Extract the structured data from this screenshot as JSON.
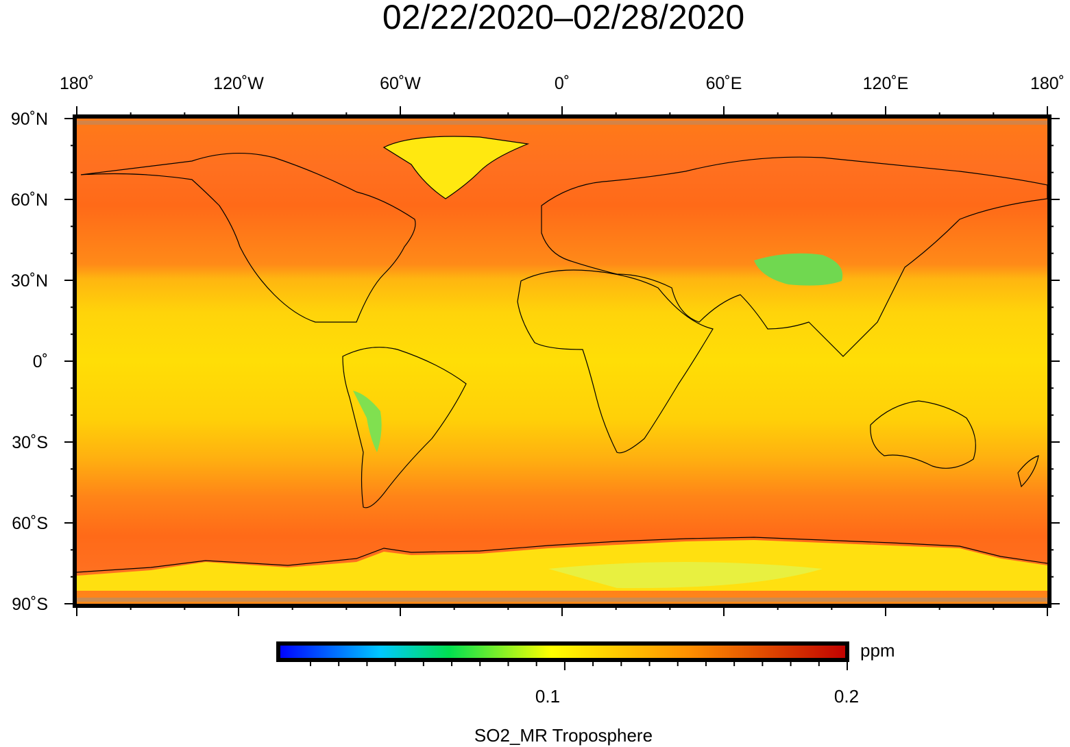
{
  "title": "02/22/2020–02/28/2020",
  "map": {
    "projection": "equirectangular",
    "lon_range": [
      -180,
      180
    ],
    "lat_range": [
      -90,
      90
    ],
    "top_labels": [
      "180˚",
      "120˚W",
      "60˚W",
      "0˚",
      "60˚E",
      "120˚E",
      "180˚"
    ],
    "left_labels": [
      "90˚N",
      "60˚N",
      "30˚N",
      "0˚",
      "30˚S",
      "60˚S",
      "90˚S"
    ],
    "colors": {
      "background_low_lat": "#ffe000",
      "mid_lat": "#ff9a10",
      "high_lat": "#ff6010",
      "land_outline": "#000000",
      "missing": "#808080",
      "low_values": "#40e060"
    }
  },
  "colorbar": {
    "unit": "ppm",
    "tick_labels": [
      "0.1",
      "0.2"
    ],
    "variable_label": "SO2_MR Troposphere",
    "colors": [
      "#0000ff",
      "#00c8ff",
      "#00e050",
      "#ffff00",
      "#ff9000",
      "#c00000"
    ]
  }
}
